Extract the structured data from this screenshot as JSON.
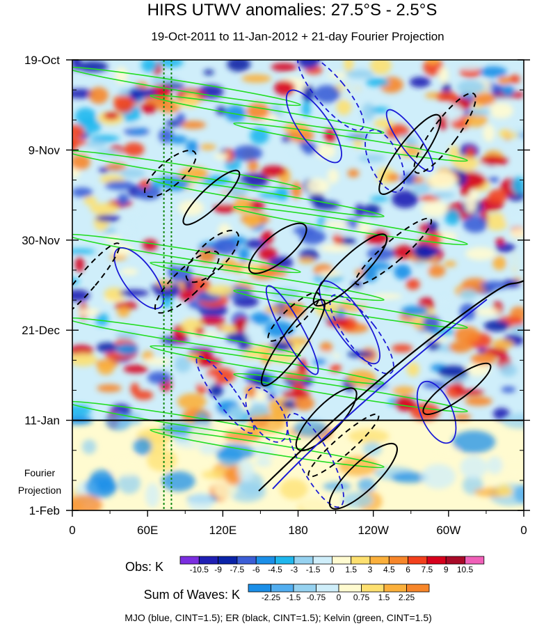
{
  "chart_data": {
    "type": "heatmap",
    "title": "HIRS UTWV anomalies: 27.5°S - 2.5°S",
    "subtitle": "19-Oct-2011 to 11-Jan-2012 + 21-day Fourier Projection",
    "x_ticks": [
      {
        "label": "0",
        "lon": 0
      },
      {
        "label": "60E",
        "lon": 60
      },
      {
        "label": "120E",
        "lon": 120
      },
      {
        "label": "180",
        "lon": 180
      },
      {
        "label": "120W",
        "lon": 240
      },
      {
        "label": "60W",
        "lon": 300
      },
      {
        "label": "0",
        "lon": 360
      }
    ],
    "xlim": [
      0,
      360
    ],
    "y_ticks": [
      {
        "label": "19-Oct",
        "day": 0
      },
      {
        "label": "9-Nov",
        "day": 21
      },
      {
        "label": "30-Nov",
        "day": 42
      },
      {
        "label": "21-Dec",
        "day": 63
      },
      {
        "label": "11-Jan",
        "day": 84
      },
      {
        "label": "1-Feb",
        "day": 105
      }
    ],
    "ylim": [
      0,
      105
    ],
    "observation_end_day": 84,
    "projection_label_1": "Fourier",
    "projection_label_2": "Projection",
    "reference_lines_lon": [
      73,
      79
    ],
    "obs_colorbar": {
      "label": "Obs: K",
      "levels": [
        "-10.5",
        "-9",
        "-7.5",
        "-6",
        "-4.5",
        "-3",
        "-1.5",
        "0",
        "1.5",
        "3",
        "4.5",
        "6",
        "7.5",
        "9",
        "10.5"
      ],
      "colors": [
        "#7b2ee0",
        "#1f1fb4",
        "#0a23a8",
        "#3b5ed6",
        "#1b8fe8",
        "#1fb7ee",
        "#96d2f0",
        "#cfeefa",
        "#fffbd0",
        "#fde070",
        "#fbb03c",
        "#f7862a",
        "#f3401c",
        "#d7001c",
        "#a80a28",
        "#f060b8"
      ]
    },
    "waves_colorbar": {
      "label": "Sum of Waves: K",
      "levels": [
        "-2.25",
        "-1.5",
        "-0.75",
        "0",
        "0.75",
        "1.5",
        "2.25"
      ],
      "colors": [
        "#1b8fe8",
        "#52aef0",
        "#96d2f0",
        "#cfeefa",
        "#fffbd0",
        "#fde070",
        "#fbb03c",
        "#f7862a"
      ]
    },
    "contours": [
      {
        "name": "MJO",
        "color": "#1a1ad6",
        "cint": 1.5
      },
      {
        "name": "ER",
        "color": "#000000",
        "cint": 1.5
      },
      {
        "name": "Kelvin",
        "color": "#22dd22",
        "cint": 1.5
      }
    ],
    "footer": "MJO (blue, CINT=1.5); ER (black, CINT=1.5); Kelvin (green, CINT=1.5)"
  }
}
